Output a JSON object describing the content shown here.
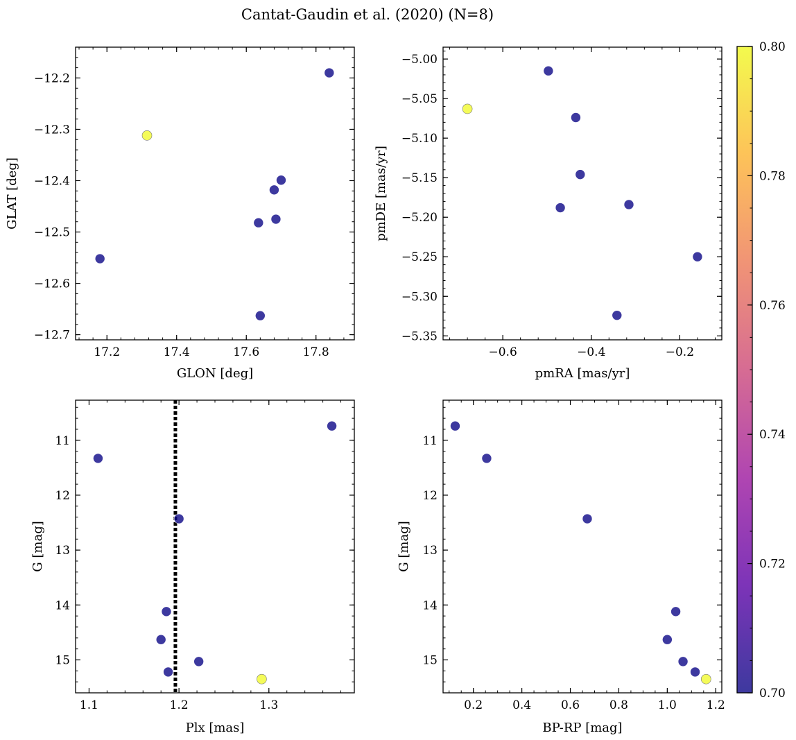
{
  "figure": {
    "title": "Cantat-Gaudin et al. (2020) (N=8)"
  },
  "colorbar": {
    "min": 0.7,
    "max": 0.8,
    "ticks": [
      "0.70",
      "0.72",
      "0.74",
      "0.76",
      "0.78",
      "0.80"
    ],
    "colormap": [
      "#0d0887",
      "#5c01a6",
      "#9c179e",
      "#cc4778",
      "#ed7953",
      "#fdb42f",
      "#f0f921"
    ]
  },
  "chart_data": [
    {
      "type": "scatter",
      "xlabel": "GLON [deg]",
      "ylabel": "GLAT [deg]",
      "xlim": [
        17.11,
        17.91
      ],
      "ylim": [
        -12.71,
        -12.14
      ],
      "xticks": [
        "17.2",
        "17.4",
        "17.6",
        "17.8"
      ],
      "yticks": [
        "−12.2",
        "−12.3",
        "−12.4",
        "−12.5",
        "−12.6",
        "−12.7"
      ],
      "x": [
        17.18,
        17.315,
        17.635,
        17.64,
        17.68,
        17.685,
        17.7,
        17.838
      ],
      "y": [
        -12.552,
        -12.312,
        -12.482,
        -12.663,
        -12.418,
        -12.475,
        -12.399,
        -12.19
      ],
      "c": [
        0.7,
        0.8,
        0.7,
        0.7,
        0.7,
        0.7,
        0.7,
        0.7
      ]
    },
    {
      "type": "scatter",
      "xlabel": "pmRA [mas/yr]",
      "ylabel": "pmDE [mas/yr]",
      "xlim": [
        -0.735,
        -0.105
      ],
      "ylim": [
        -5.355,
        -4.985
      ],
      "xticks": [
        "−0.6",
        "−0.4",
        "−0.2"
      ],
      "yticks": [
        "−5.00",
        "−5.05",
        "−5.10",
        "−5.15",
        "−5.20",
        "−5.25",
        "−5.30",
        "−5.35"
      ],
      "x": [
        -0.68,
        -0.497,
        -0.47,
        -0.435,
        -0.425,
        -0.342,
        -0.315,
        -0.16
      ],
      "y": [
        -5.063,
        -5.015,
        -5.188,
        -5.074,
        -5.146,
        -5.324,
        -5.184,
        -5.25
      ],
      "c": [
        0.8,
        0.7,
        0.7,
        0.7,
        0.7,
        0.7,
        0.7,
        0.7
      ]
    },
    {
      "type": "scatter",
      "xlabel": "Plx [mas]",
      "ylabel": "G [mag]",
      "xlim": [
        1.085,
        1.395
      ],
      "ylim": [
        15.6,
        10.27
      ],
      "xticks": [
        "1.1",
        "1.2",
        "1.3"
      ],
      "yticks": [
        "11",
        "12",
        "13",
        "14",
        "15"
      ],
      "vline": 1.196,
      "x": [
        1.11,
        1.18,
        1.186,
        1.188,
        1.2,
        1.222,
        1.292,
        1.37
      ],
      "y": [
        11.33,
        14.63,
        14.12,
        15.22,
        12.43,
        15.03,
        15.35,
        10.74
      ],
      "c": [
        0.7,
        0.7,
        0.7,
        0.7,
        0.7,
        0.7,
        0.8,
        0.7
      ]
    },
    {
      "type": "scatter",
      "xlabel": "BP-RP [mag]",
      "ylabel": "G [mag]",
      "xlim": [
        0.075,
        1.225
      ],
      "ylim": [
        15.6,
        10.27
      ],
      "xticks": [
        "0.2",
        "0.4",
        "0.6",
        "0.8",
        "1.0",
        "1.2"
      ],
      "yticks": [
        "11",
        "12",
        "13",
        "14",
        "15"
      ],
      "x": [
        0.125,
        0.255,
        0.67,
        1.0,
        1.035,
        1.065,
        1.115,
        1.16
      ],
      "y": [
        10.74,
        11.33,
        12.43,
        14.63,
        14.12,
        15.03,
        15.22,
        15.35
      ],
      "c": [
        0.7,
        0.7,
        0.7,
        0.7,
        0.7,
        0.7,
        0.7,
        0.8
      ]
    }
  ]
}
